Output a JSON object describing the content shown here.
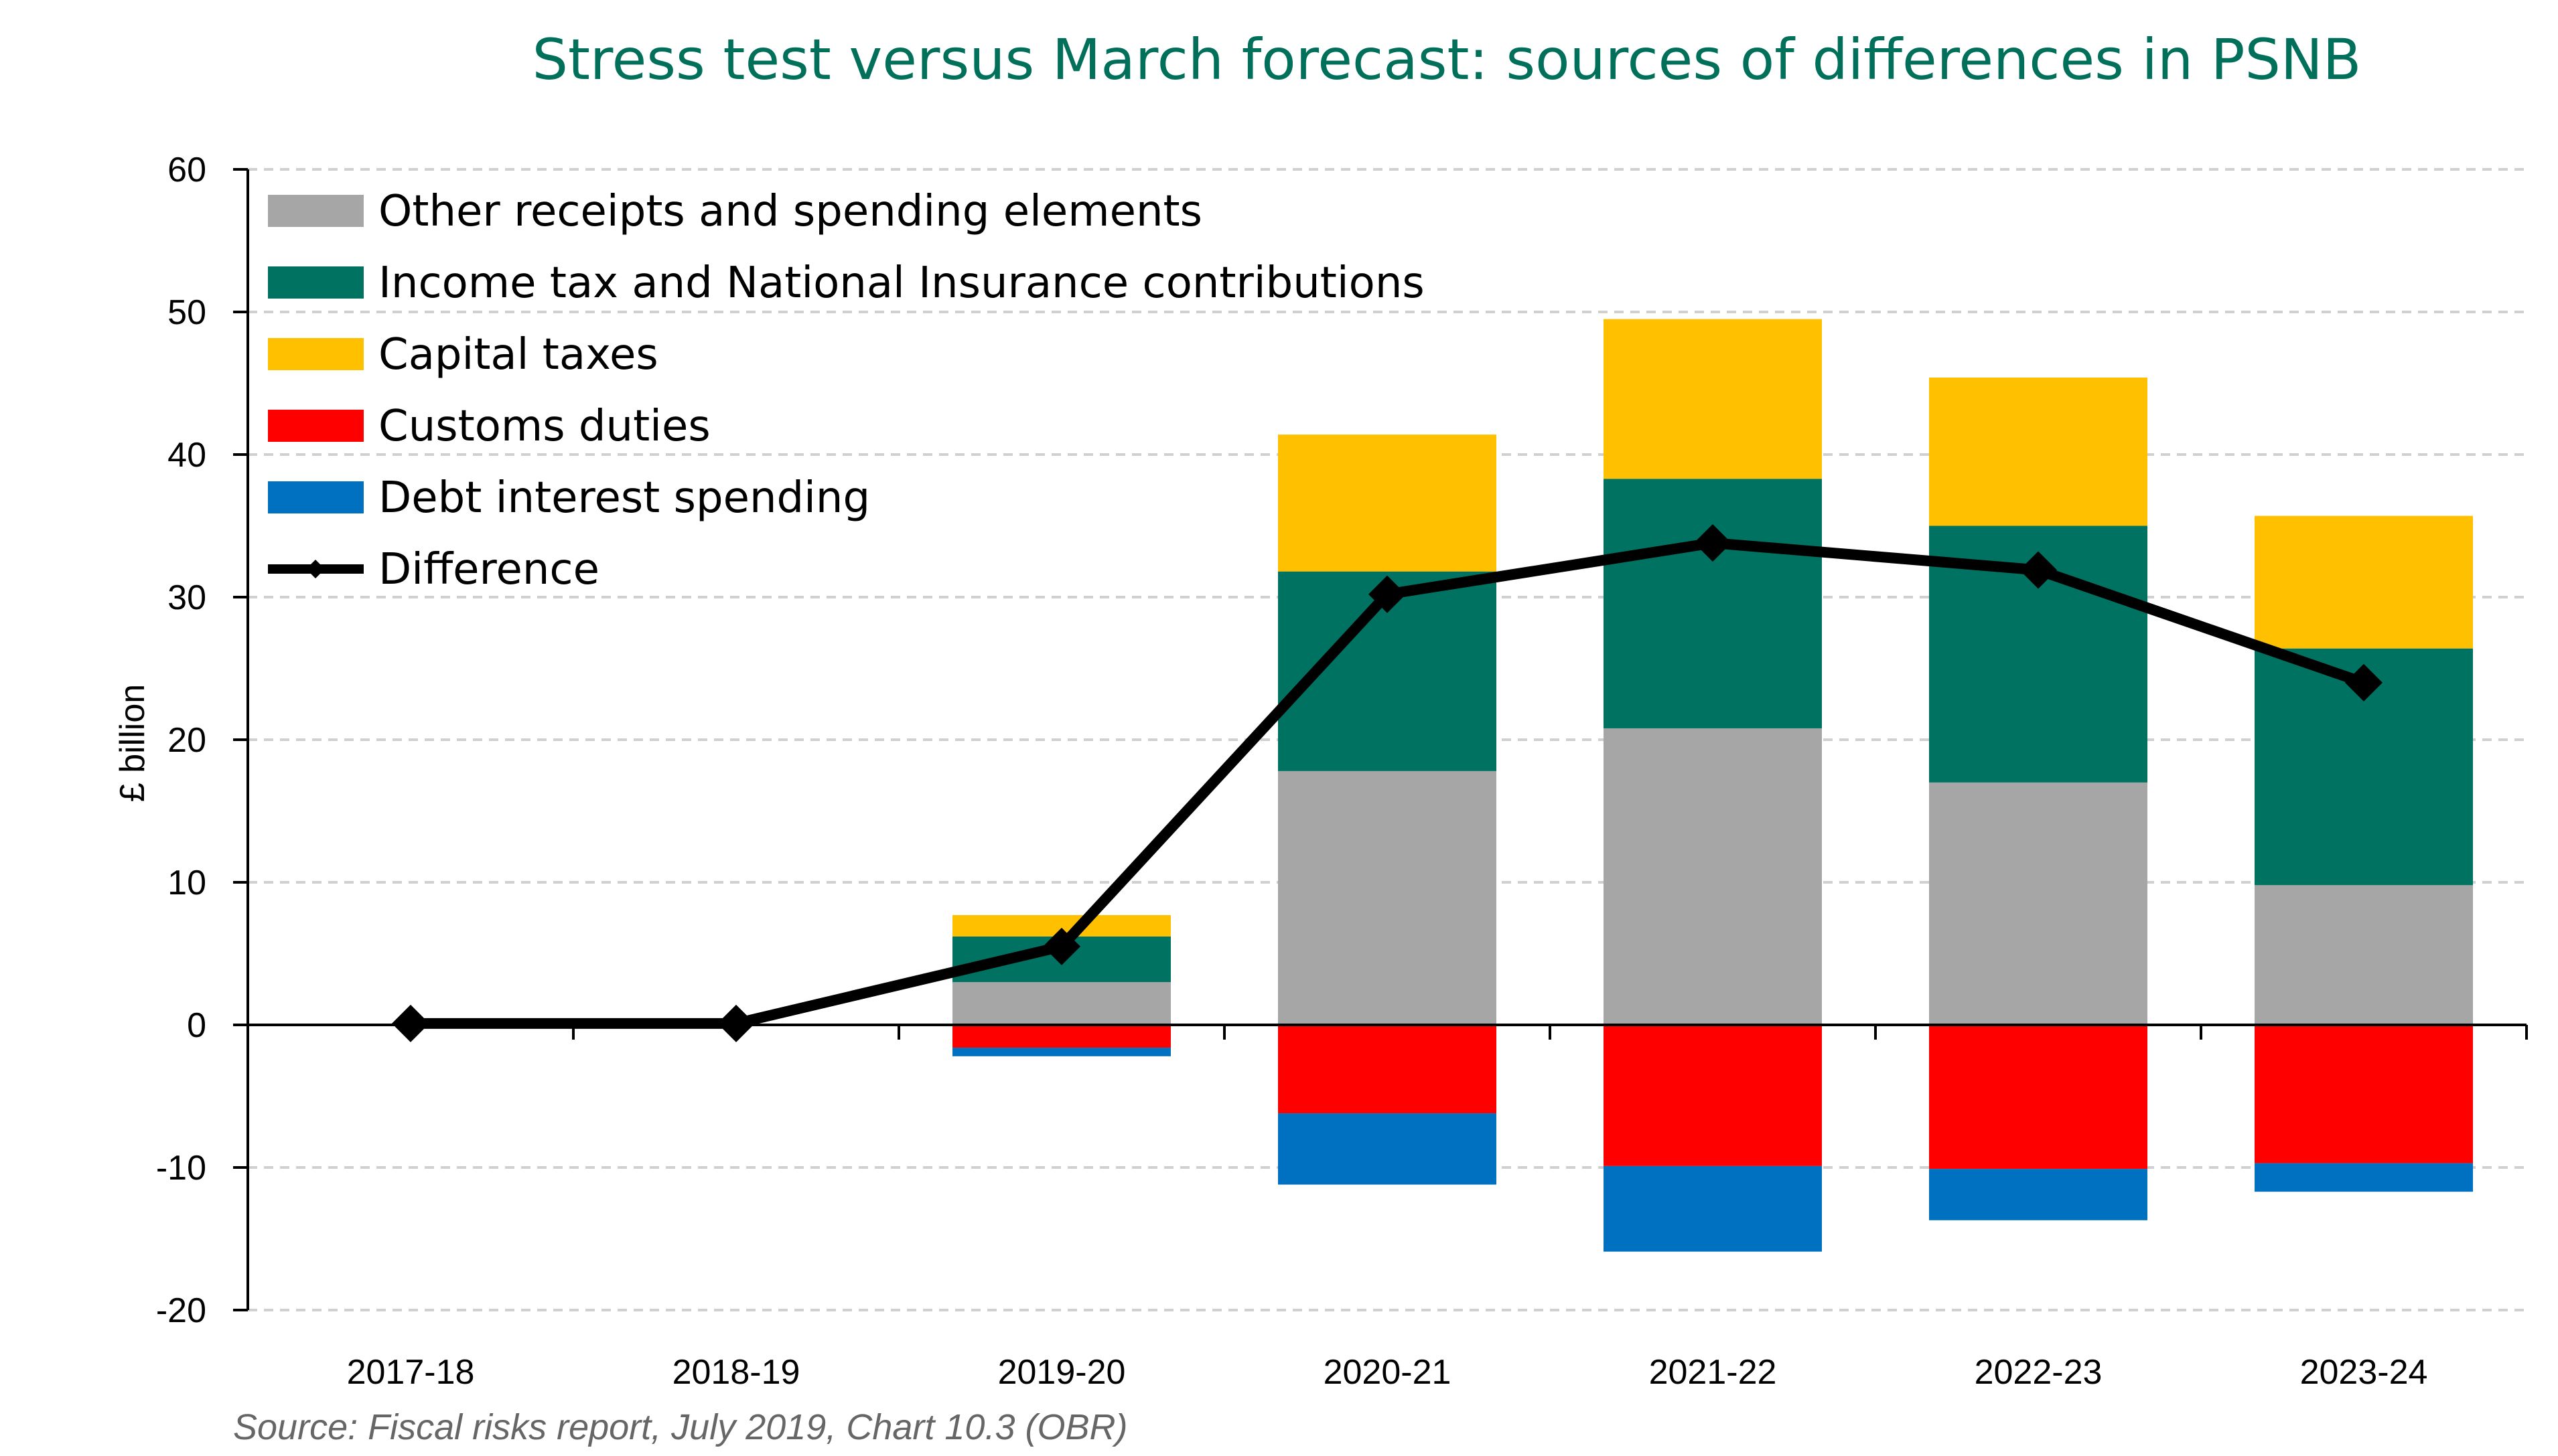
{
  "chart_data": {
    "type": "bar",
    "title": "Stress test versus March forecast: sources of differences in PSNB",
    "ylabel": "£ billion",
    "xlabel": "",
    "ylim": [
      -20,
      60
    ],
    "yticks": [
      60,
      50,
      40,
      30,
      20,
      10,
      0,
      -10,
      -20
    ],
    "grid": true,
    "legend_position": "top-left",
    "categories": [
      "2017-18",
      "2018-19",
      "2019-20",
      "2020-21",
      "2021-22",
      "2022-23",
      "2023-24"
    ],
    "series": [
      {
        "name": "Other receipts and spending elements",
        "color": "#a6a6a6",
        "values": [
          0,
          0,
          3.0,
          17.8,
          20.8,
          17.0,
          9.8
        ]
      },
      {
        "name": "Income tax and National Insurance contributions",
        "color": "#007261",
        "values": [
          0,
          0,
          3.2,
          14.0,
          17.5,
          18.0,
          16.6
        ]
      },
      {
        "name": "Capital taxes",
        "color": "#ffc000",
        "values": [
          0,
          0,
          1.5,
          9.6,
          11.2,
          10.4,
          9.3
        ]
      },
      {
        "name": "Customs duties",
        "color": "#ff0000",
        "values": [
          0,
          0,
          -1.6,
          -6.2,
          -9.9,
          -10.1,
          -9.7
        ]
      },
      {
        "name": "Debt interest spending",
        "color": "#0070c0",
        "values": [
          0,
          0,
          -0.6,
          -5.0,
          -6.0,
          -3.6,
          -2.0
        ]
      }
    ],
    "line": {
      "name": "Difference",
      "color": "#000000",
      "values": [
        0.1,
        0.1,
        5.5,
        30.2,
        33.8,
        31.9,
        24.0
      ]
    },
    "source": "Source: Fiscal risks report, July 2019, Chart 10.3 (OBR)"
  }
}
